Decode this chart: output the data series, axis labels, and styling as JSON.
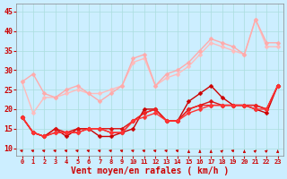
{
  "background_color": "#cceeff",
  "grid_color": "#aadddd",
  "xlabel": "Vent moyen/en rafales ( km/h )",
  "xlabel_color": "#cc0000",
  "tick_color": "#cc0000",
  "x_ticks": [
    0,
    1,
    2,
    3,
    4,
    5,
    6,
    7,
    8,
    9,
    10,
    11,
    12,
    13,
    14,
    15,
    16,
    17,
    18,
    19,
    20,
    21,
    22,
    23
  ],
  "ylim": [
    8,
    47
  ],
  "xlim": [
    -0.5,
    23.5
  ],
  "yticks": [
    10,
    15,
    20,
    25,
    30,
    35,
    40,
    45
  ],
  "light_line1": [
    27,
    29,
    24,
    23,
    25,
    26,
    24,
    22,
    24,
    26,
    33,
    34,
    26,
    29,
    30,
    32,
    35,
    38,
    37,
    36,
    34,
    43,
    37,
    37
  ],
  "light_line2": [
    27,
    19,
    23,
    23,
    24,
    25,
    24,
    24,
    25,
    26,
    32,
    33,
    26,
    28,
    29,
    31,
    34,
    37,
    36,
    35,
    34,
    43,
    36,
    36
  ],
  "dark_line1": [
    18,
    14,
    13,
    15,
    13,
    15,
    15,
    13,
    13,
    14,
    15,
    20,
    20,
    17,
    17,
    22,
    24,
    26,
    23,
    21,
    21,
    20,
    19,
    26
  ],
  "dark_line2": [
    18,
    14,
    13,
    15,
    14,
    15,
    15,
    15,
    15,
    15,
    17,
    19,
    20,
    17,
    17,
    20,
    21,
    22,
    21,
    21,
    21,
    21,
    20,
    26
  ],
  "dark_line3": [
    18,
    14,
    13,
    14,
    14,
    14,
    15,
    15,
    14,
    14,
    17,
    19,
    20,
    17,
    17,
    20,
    21,
    21,
    21,
    21,
    21,
    21,
    20,
    26
  ],
  "dark_line4": [
    18,
    14,
    13,
    14,
    14,
    14,
    15,
    15,
    14,
    14,
    17,
    18,
    19,
    17,
    17,
    19,
    20,
    21,
    21,
    21,
    21,
    20,
    20,
    26
  ],
  "light_color1": "#ffaaaa",
  "light_color2": "#ffbbbb",
  "dark_colors": [
    "#cc0000",
    "#dd1111",
    "#ee2222",
    "#ff3333"
  ],
  "marker_size": 2.5,
  "linewidth": 1.0
}
